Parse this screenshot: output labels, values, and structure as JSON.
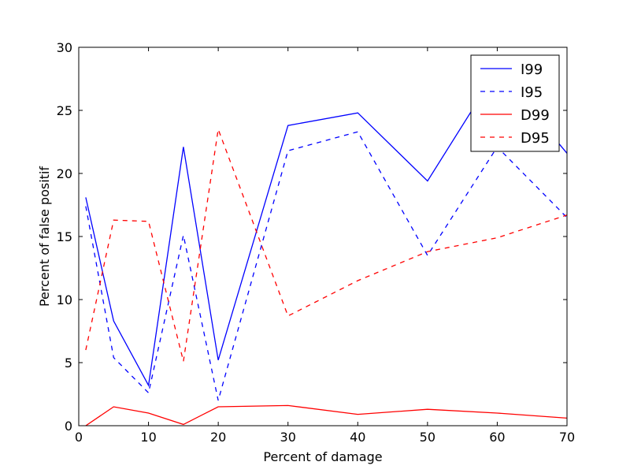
{
  "chart_data": {
    "type": "line",
    "title": "",
    "xlabel": "Percent of damage",
    "ylabel": "Percent of false positif",
    "xlim": [
      0,
      70
    ],
    "ylim": [
      0,
      30
    ],
    "xticks": [
      "0",
      "10",
      "20",
      "30",
      "40",
      "50",
      "60",
      "70"
    ],
    "yticks": [
      "0",
      "5",
      "10",
      "15",
      "20",
      "25",
      "30"
    ],
    "grid": false,
    "legend_position": "top-right",
    "series": [
      {
        "name": "I99",
        "color": "#0000ff",
        "dash": "solid",
        "x": [
          1,
          5,
          10,
          15,
          20,
          30,
          40,
          50,
          60,
          70
        ],
        "y": [
          18.1,
          8.3,
          3.2,
          22.1,
          5.2,
          23.8,
          24.8,
          19.4,
          28.2,
          21.6
        ]
      },
      {
        "name": "I95",
        "color": "#0000ff",
        "dash": "dashed",
        "x": [
          1,
          5,
          10,
          15,
          20,
          30,
          40,
          50,
          60,
          70
        ],
        "y": [
          17.4,
          5.4,
          2.6,
          15.1,
          2.0,
          21.8,
          23.3,
          13.5,
          22.1,
          16.5
        ]
      },
      {
        "name": "D99",
        "color": "#ff0000",
        "dash": "solid",
        "x": [
          1,
          5,
          10,
          15,
          20,
          30,
          40,
          50,
          60,
          70
        ],
        "y": [
          0.0,
          1.5,
          1.0,
          0.1,
          1.5,
          1.6,
          0.9,
          1.3,
          1.0,
          0.6
        ]
      },
      {
        "name": "D95",
        "color": "#ff0000",
        "dash": "dashed",
        "x": [
          1,
          5,
          10,
          15,
          20,
          30,
          40,
          50,
          60,
          70
        ],
        "y": [
          6.0,
          16.3,
          16.2,
          5.1,
          23.5,
          8.7,
          11.5,
          13.8,
          14.9,
          16.7
        ]
      }
    ]
  }
}
